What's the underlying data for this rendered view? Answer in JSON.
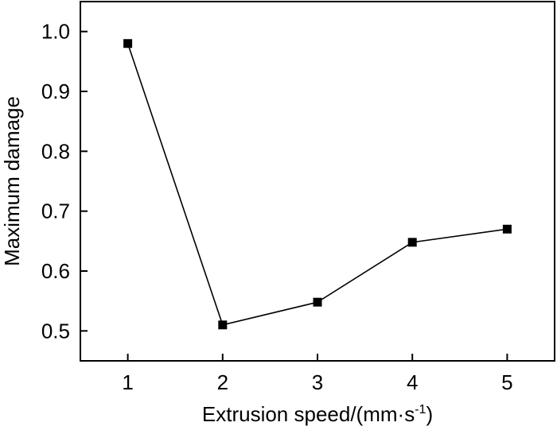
{
  "chart_data": {
    "type": "line",
    "title": "",
    "xlabel": "Extrusion speed/(mm·s",
    "xlabel_superscript": "-1",
    "xlabel_suffix": ")",
    "ylabel": "Maximum damage",
    "x": [
      1,
      2,
      3,
      4,
      5
    ],
    "xlim": [
      0.5,
      5.5
    ],
    "ylim": [
      0.45,
      1.05
    ],
    "x_ticks": [
      "1",
      "2",
      "3",
      "4",
      "5"
    ],
    "y_ticks": [
      "0.5",
      "0.6",
      "0.7",
      "0.8",
      "0.9",
      "1.0"
    ],
    "grid": false,
    "series": [
      {
        "values": [
          0.98,
          0.51,
          0.548,
          0.648,
          0.67
        ],
        "color": "#000000",
        "marker": "square"
      }
    ]
  }
}
